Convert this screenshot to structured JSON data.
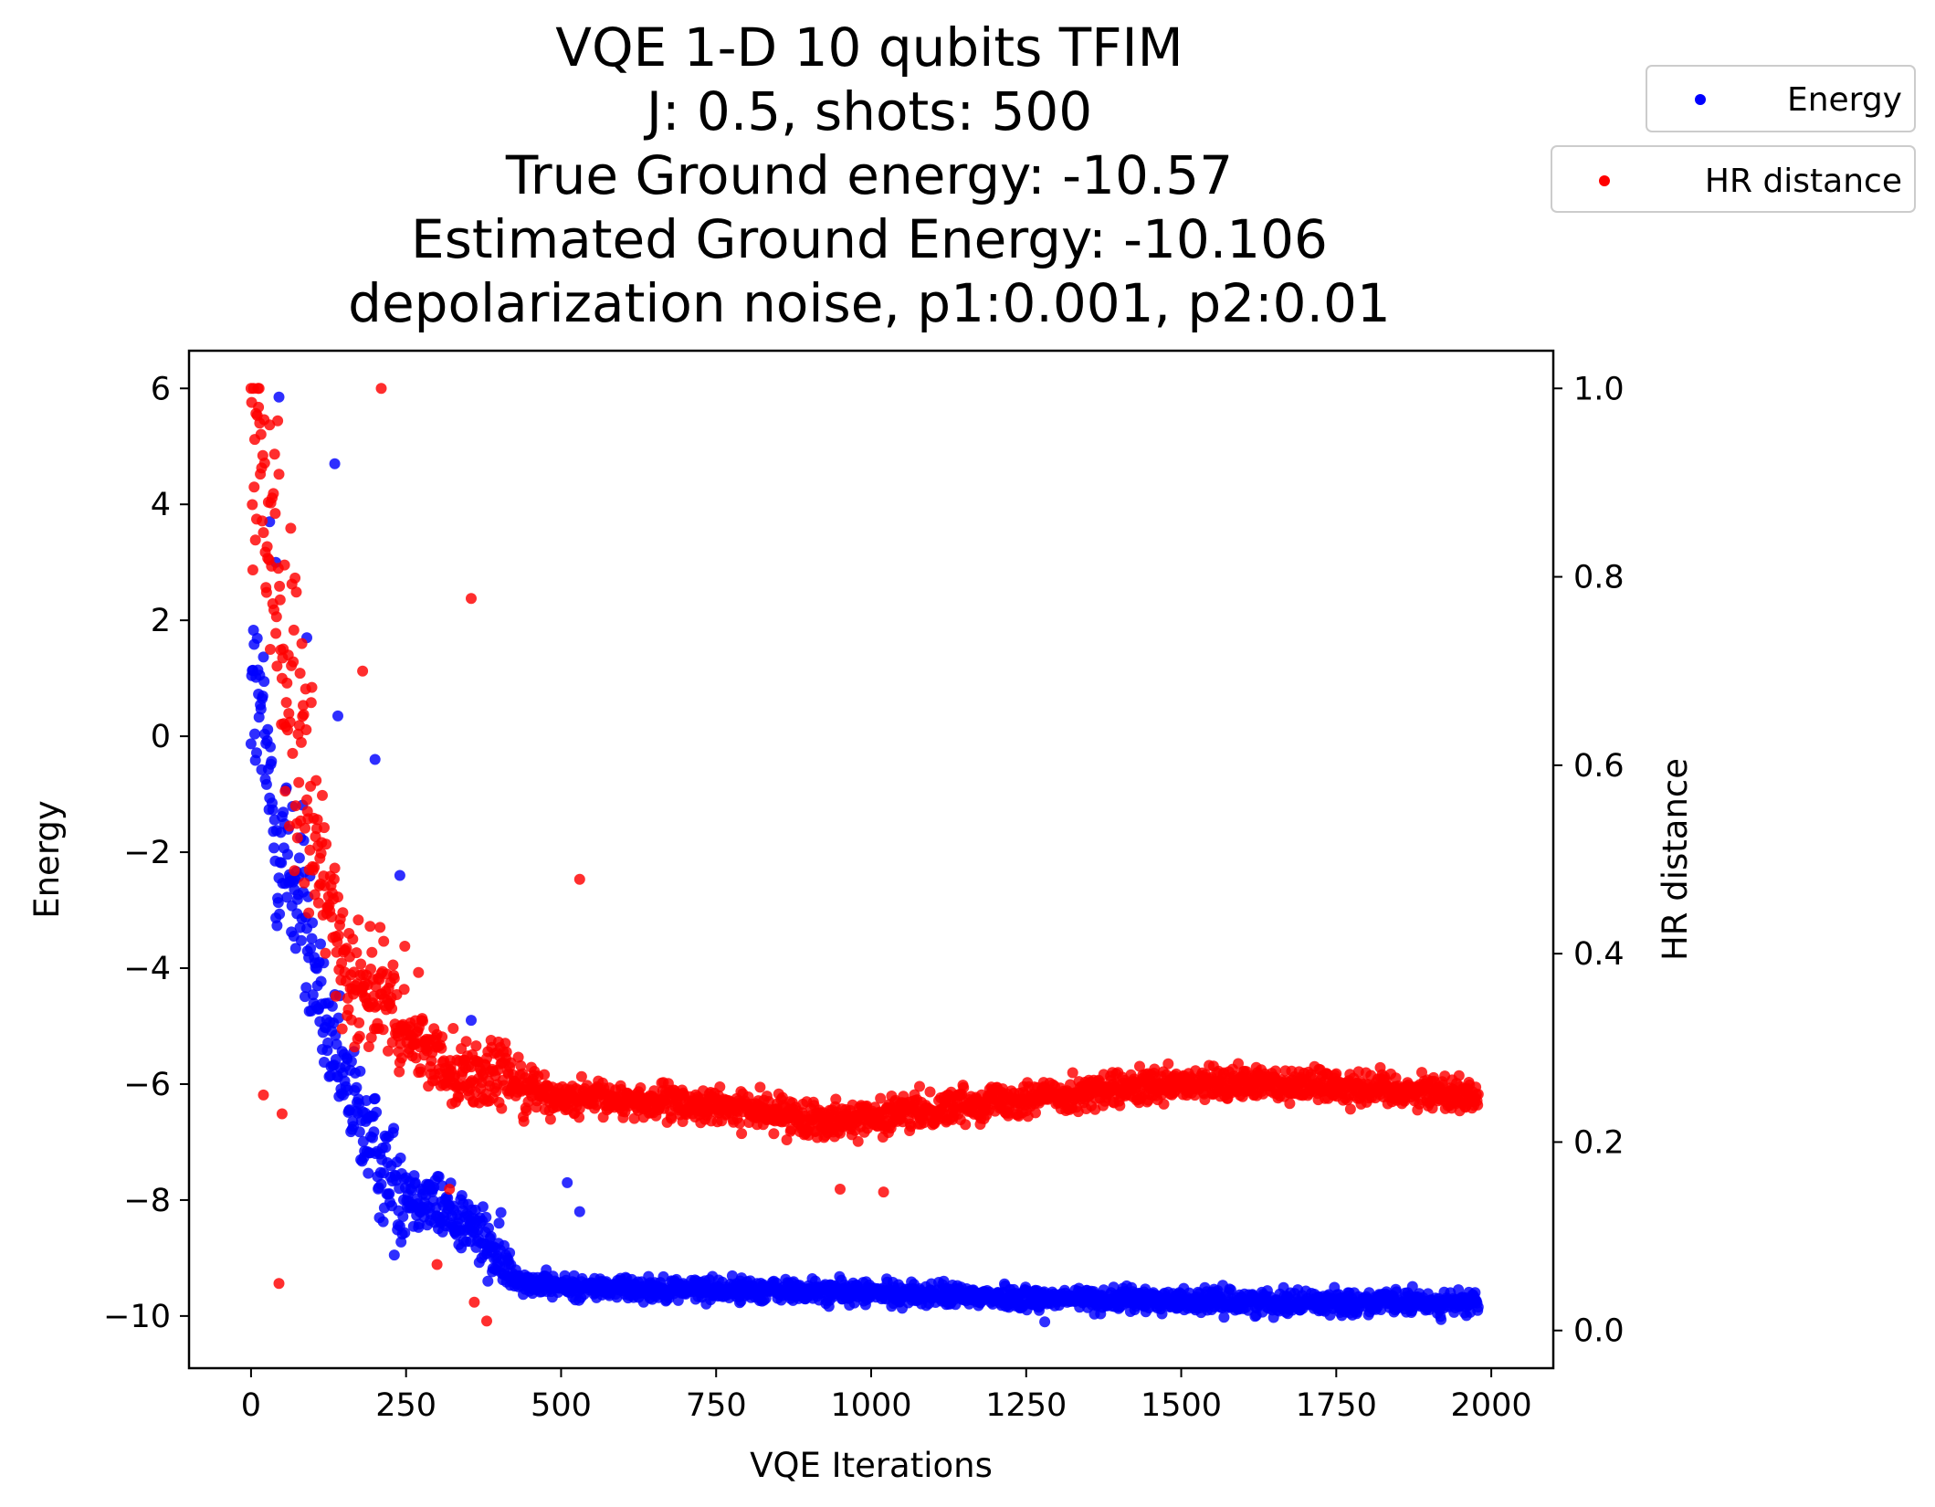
{
  "chart_data": {
    "type": "scatter",
    "title_lines": [
      "VQE 1-D 10 qubits TFIM",
      "J: 0.5, shots: 500",
      "True Ground energy: -10.57",
      "Estimated Ground Energy: -10.106",
      "depolarization noise, p1:0.001, p2:0.01"
    ],
    "xlabel": "VQE Iterations",
    "ylabel": "Energy",
    "y2label": "HR distance",
    "xlim": [
      -100,
      2100
    ],
    "ylim": [
      -10.9,
      6.65
    ],
    "y2lim": [
      -0.04,
      1.04
    ],
    "xticks": [
      0,
      250,
      500,
      750,
      1000,
      1250,
      1500,
      1750,
      2000
    ],
    "yticks": [
      6,
      4,
      2,
      0,
      -2,
      -4,
      -6,
      -8,
      -10
    ],
    "y2ticks": [
      1.0,
      0.8,
      0.6,
      0.4,
      0.2,
      0.0
    ],
    "xtick_labels": [
      "0",
      "250",
      "500",
      "750",
      "1000",
      "1250",
      "1500",
      "1750",
      "2000"
    ],
    "ytick_labels": [
      "6",
      "4",
      "2",
      "0",
      "−2",
      "−4",
      "−6",
      "−8",
      "−10"
    ],
    "y2tick_labels": [
      "1.0",
      "0.8",
      "0.6",
      "0.4",
      "0.2",
      "0.0"
    ],
    "grid": false,
    "legend_position": "top-right, outside plot",
    "n_iterations": 1980,
    "series": [
      {
        "name": "Energy",
        "axis": "left",
        "color": "#0000ff",
        "trend_points": [
          [
            0,
            1.0
          ],
          [
            20,
            0.0
          ],
          [
            40,
            -1.8
          ],
          [
            60,
            -2.2
          ],
          [
            80,
            -2.8
          ],
          [
            100,
            -4.0
          ],
          [
            130,
            -5.5
          ],
          [
            160,
            -6.2
          ],
          [
            190,
            -6.9
          ],
          [
            220,
            -7.6
          ],
          [
            260,
            -7.9
          ],
          [
            300,
            -8.1
          ],
          [
            350,
            -8.4
          ],
          [
            390,
            -8.9
          ],
          [
            420,
            -9.3
          ],
          [
            460,
            -9.45
          ],
          [
            500,
            -9.5
          ],
          [
            800,
            -9.55
          ],
          [
            1000,
            -9.6
          ],
          [
            1300,
            -9.7
          ],
          [
            1600,
            -9.75
          ],
          [
            1980,
            -9.78
          ]
        ],
        "outliers": [
          [
            45,
            5.85
          ],
          [
            135,
            4.7
          ],
          [
            30,
            3.7
          ],
          [
            40,
            3.0
          ],
          [
            90,
            1.7
          ],
          [
            140,
            0.35
          ],
          [
            200,
            -0.4
          ],
          [
            240,
            -2.4
          ],
          [
            355,
            -4.9
          ],
          [
            510,
            -7.7
          ],
          [
            530,
            -8.2
          ],
          [
            1280,
            -10.1
          ]
        ]
      },
      {
        "name": "HR distance",
        "axis": "right",
        "color": "#ff0000",
        "trend_points": [
          [
            0,
            0.96
          ],
          [
            40,
            0.82
          ],
          [
            70,
            0.62
          ],
          [
            100,
            0.52
          ],
          [
            130,
            0.44
          ],
          [
            160,
            0.38
          ],
          [
            200,
            0.36
          ],
          [
            250,
            0.31
          ],
          [
            300,
            0.29
          ],
          [
            350,
            0.27
          ],
          [
            400,
            0.27
          ],
          [
            450,
            0.26
          ],
          [
            500,
            0.245
          ],
          [
            600,
            0.245
          ],
          [
            700,
            0.24
          ],
          [
            800,
            0.235
          ],
          [
            900,
            0.225
          ],
          [
            1000,
            0.225
          ],
          [
            1100,
            0.235
          ],
          [
            1200,
            0.245
          ],
          [
            1300,
            0.25
          ],
          [
            1400,
            0.255
          ],
          [
            1500,
            0.26
          ],
          [
            1600,
            0.262
          ],
          [
            1700,
            0.262
          ],
          [
            1800,
            0.258
          ],
          [
            1980,
            0.25
          ]
        ],
        "outliers": [
          [
            355,
            0.777
          ],
          [
            530,
            0.479
          ],
          [
            20,
            0.25
          ],
          [
            50,
            0.23
          ],
          [
            45,
            0.05
          ],
          [
            380,
            0.01
          ],
          [
            360,
            0.03
          ],
          [
            1020,
            0.147
          ],
          [
            950,
            0.15
          ],
          [
            210,
            1.0
          ],
          [
            180,
            0.7
          ],
          [
            270,
            0.38
          ],
          [
            320,
            0.15
          ],
          [
            300,
            0.07
          ]
        ]
      }
    ]
  },
  "legend": {
    "items": [
      {
        "label": "Energy",
        "color": "#0000ff"
      },
      {
        "label": "HR distance",
        "color": "#ff0000"
      }
    ]
  }
}
